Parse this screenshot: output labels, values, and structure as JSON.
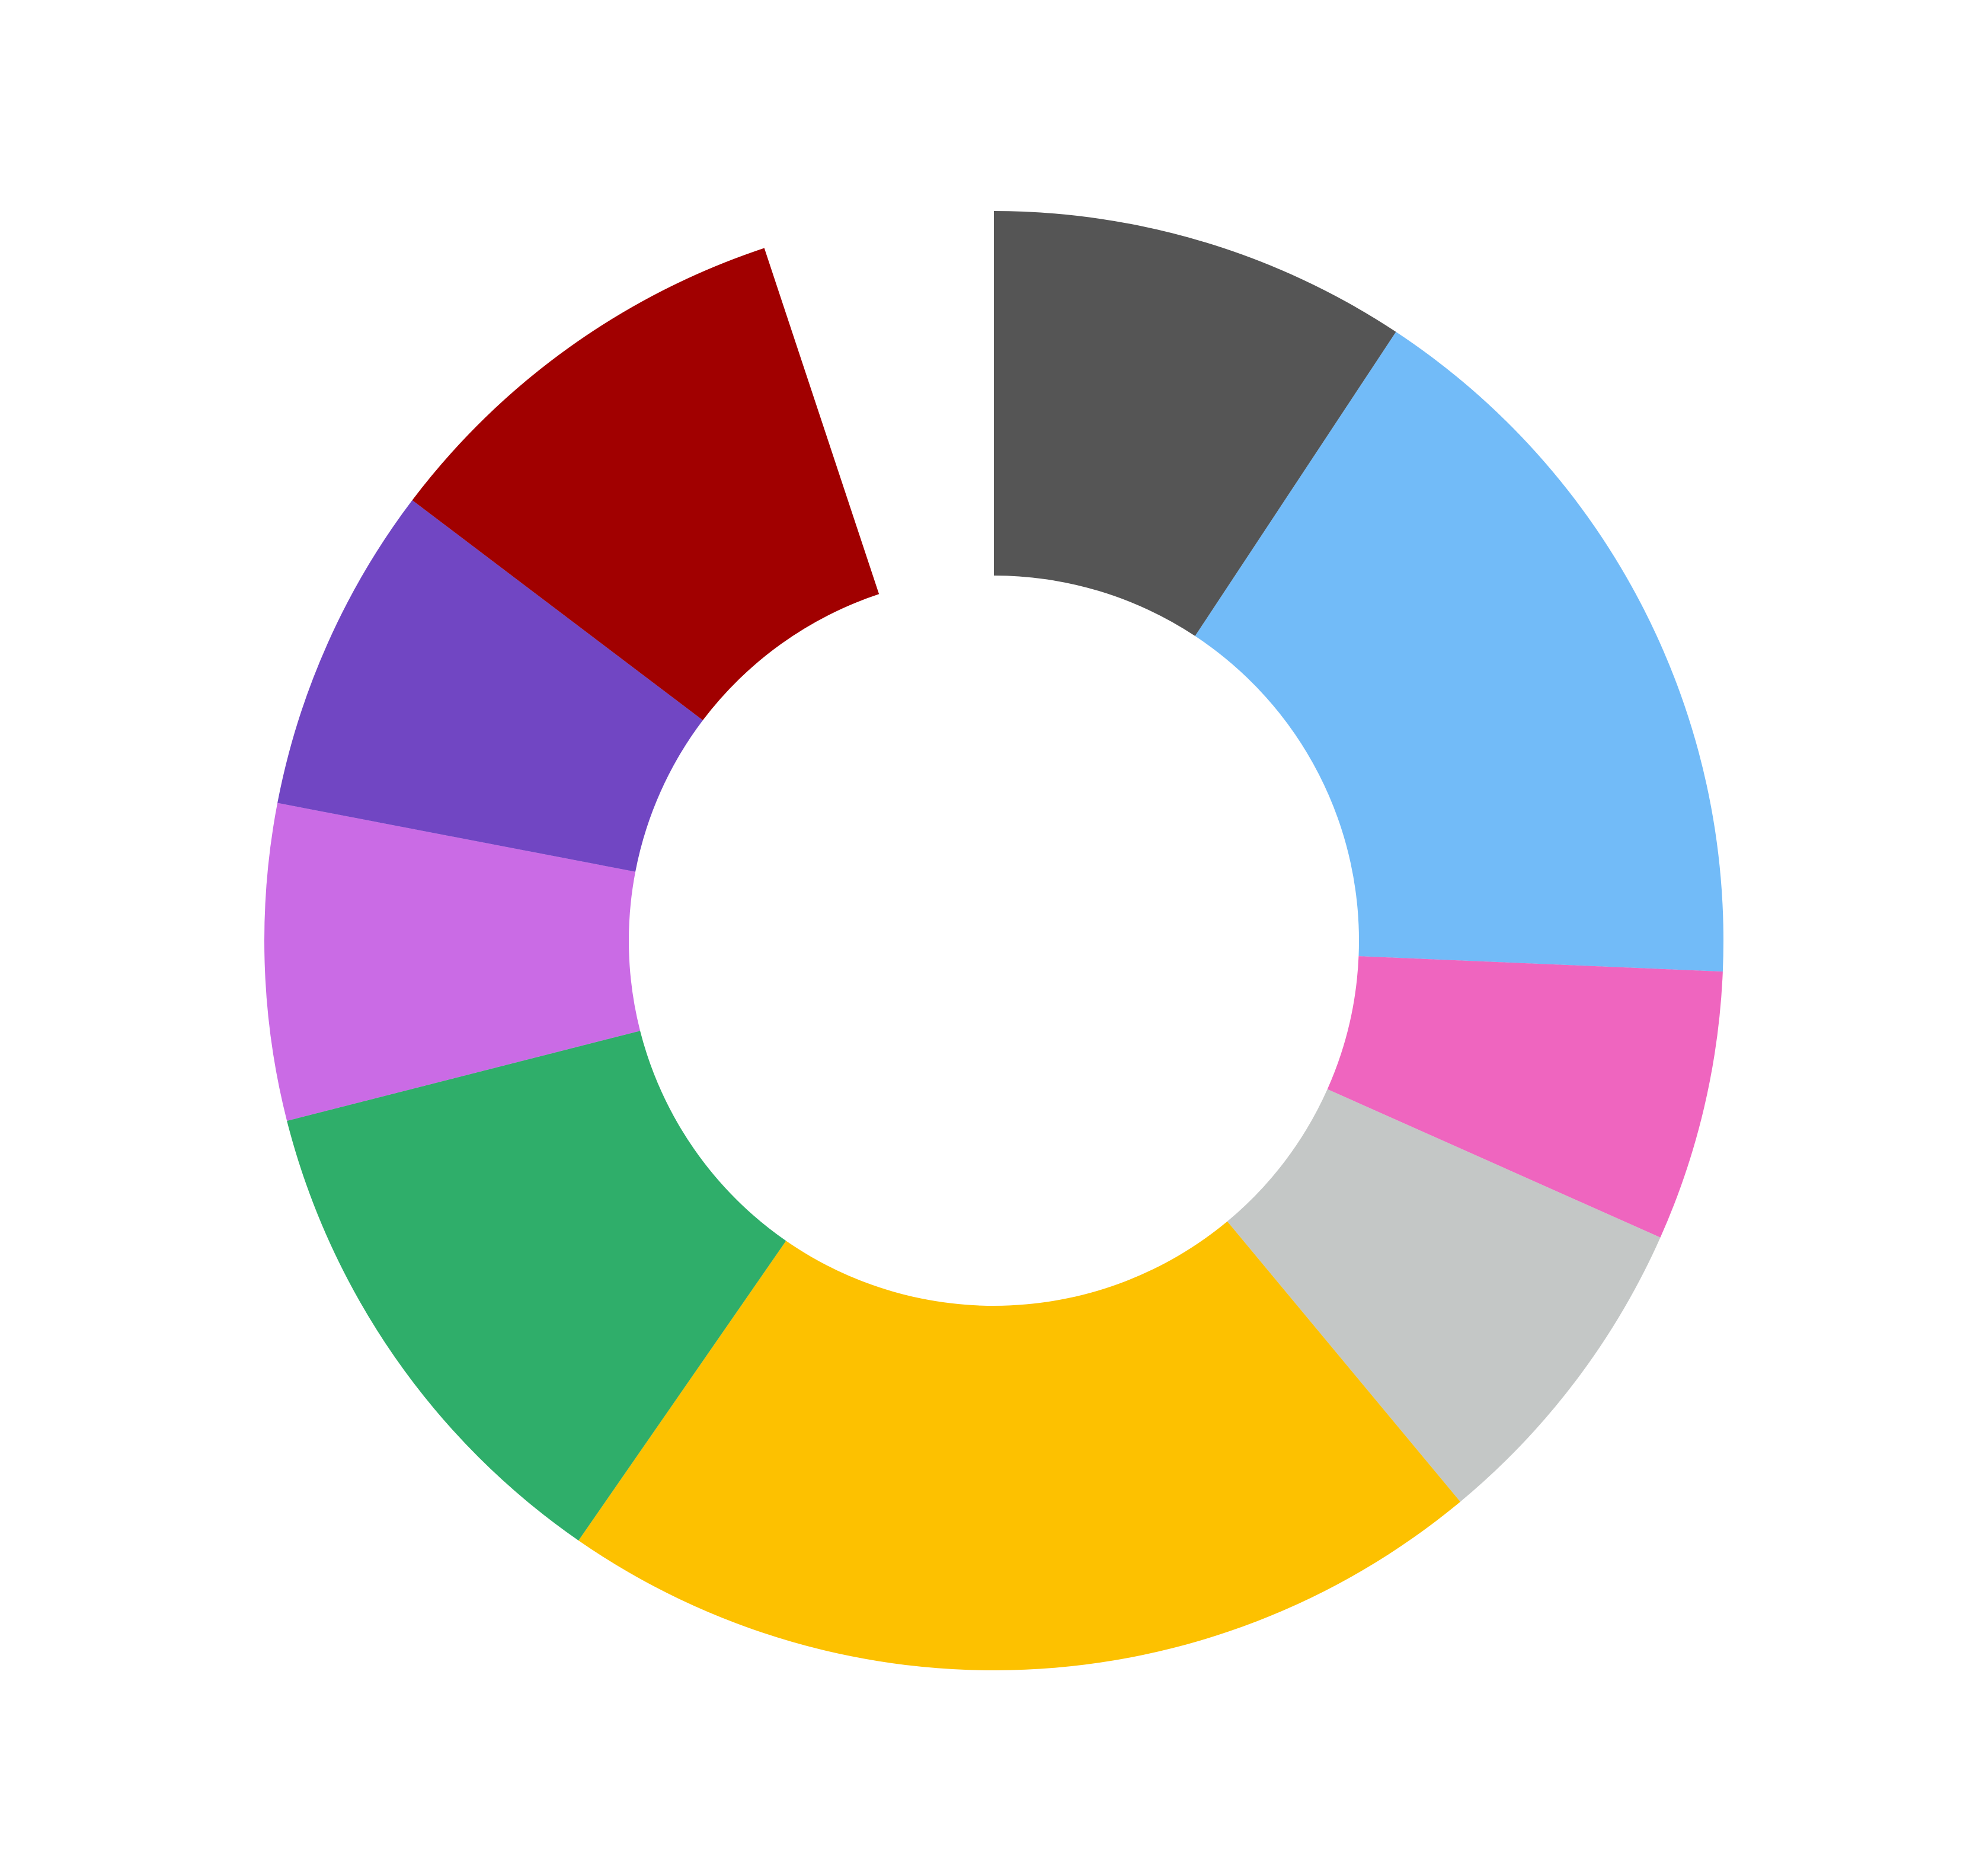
{
  "chart_data": {
    "type": "donut",
    "values": [
      9.3,
      16.4,
      6.0,
      7.3,
      20.7,
      11.4,
      7.0,
      7.3,
      9.6,
      5.1
    ],
    "colors": [
      "#555555",
      "#72bbf8",
      "#ef65bf",
      "#c4c7c6",
      "#fdc100",
      "#2fae6a",
      "#ca6be5",
      "#7146c3",
      "#a10000",
      null
    ],
    "categories": [
      null,
      null,
      null,
      null,
      null,
      null,
      null,
      null,
      null,
      null
    ]
  }
}
